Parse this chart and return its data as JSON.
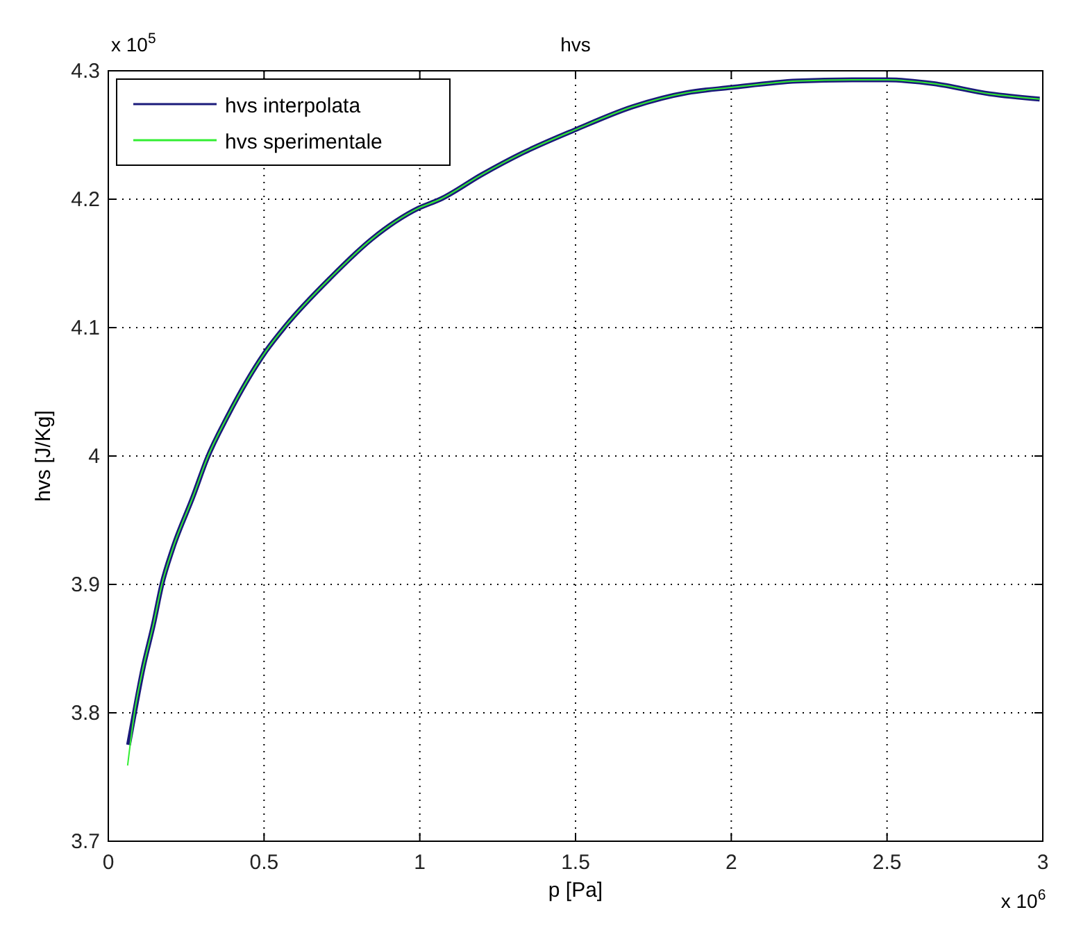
{
  "chart_data": {
    "type": "line",
    "title": "hvs",
    "xlabel": "p [Pa]",
    "ylabel": "hvs [J/Kg]",
    "annotations": [
      "x 10$^{6}$",
      "x 10$^{5}$"
    ],
    "xlim": [
      0,
      3
    ],
    "xticks": [
      0,
      0.5,
      1,
      1.5,
      2,
      2.5,
      3
    ],
    "ylim": [
      3.7,
      4.3
    ],
    "yticks": [
      3.7,
      3.8,
      3.9,
      4,
      4.1,
      4.2,
      4.3
    ],
    "grid": true,
    "legend": "top left",
    "line_style": "solid",
    "marker": "none",
    "series": [
      {
        "name": "hvs interpolata",
        "color": "#1a1a7a",
        "x": [
          0.065,
          0.084,
          0.11,
          0.145,
          0.172,
          0.207,
          0.273,
          0.317,
          0.383,
          0.507,
          0.568,
          0.714,
          0.846,
          0.996,
          1.066,
          1.198,
          1.33,
          1.498,
          1.683,
          1.859,
          2.0,
          2.211,
          2.388,
          2.5,
          2.65,
          2.83,
          2.99
        ],
        "values": [
          3.775,
          3.8,
          3.833,
          3.869,
          3.9,
          3.928,
          3.969,
          3.998,
          4.031,
          4.082,
          4.101,
          4.139,
          4.169,
          4.193,
          4.2,
          4.219,
          4.236,
          4.254,
          4.272,
          4.283,
          4.287,
          4.292,
          4.293,
          4.293,
          4.29,
          4.282,
          4.278
        ]
      },
      {
        "name": "hvs sperimentale",
        "color": "#33ee33",
        "x": [
          0.062,
          0.084,
          0.11,
          0.145,
          0.172,
          0.207,
          0.273,
          0.317,
          0.383,
          0.507,
          0.568,
          0.714,
          0.846,
          0.996,
          1.066,
          1.198,
          1.33,
          1.498,
          1.683,
          1.859,
          2.0,
          2.211,
          2.388,
          2.5,
          2.65,
          2.83,
          2.99
        ],
        "values": [
          3.759,
          3.8,
          3.833,
          3.869,
          3.9,
          3.928,
          3.969,
          3.998,
          4.031,
          4.082,
          4.101,
          4.139,
          4.169,
          4.193,
          4.2,
          4.219,
          4.236,
          4.254,
          4.272,
          4.283,
          4.287,
          4.292,
          4.293,
          4.293,
          4.29,
          4.282,
          4.278
        ]
      }
    ]
  }
}
